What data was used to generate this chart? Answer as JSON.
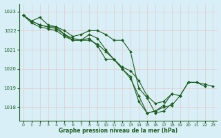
{
  "background_color": "#cce9d8",
  "plot_bg_color": "#d8eff8",
  "grid_color": "#b8d8c8",
  "line_color": "#1a5c1a",
  "marker_color": "#1a5c1a",
  "xlabel": "Graphe pression niveau de la mer (hPa)",
  "xlim": [
    -0.5,
    23.5
  ],
  "ylim": [
    1017.3,
    1023.4
  ],
  "yticks": [
    1018,
    1019,
    1020,
    1021,
    1022,
    1023
  ],
  "xticks": [
    0,
    1,
    2,
    3,
    4,
    5,
    6,
    7,
    8,
    9,
    10,
    11,
    12,
    13,
    14,
    15,
    16,
    17,
    18,
    19,
    20,
    21,
    22,
    23
  ],
  "series": [
    [
      1022.8,
      1022.5,
      1022.7,
      1022.3,
      1022.2,
      1022.0,
      1021.7,
      1021.8,
      1022.0,
      1022.0,
      1021.8,
      1021.5,
      1021.5,
      1020.9,
      1019.0,
      1018.5,
      1017.7,
      1017.8,
      1018.2,
      null,
      null,
      null,
      null,
      null
    ],
    [
      1022.8,
      1022.5,
      1022.3,
      1022.2,
      1022.1,
      1021.8,
      1021.5,
      1021.5,
      1021.6,
      1021.2,
      1020.5,
      1020.5,
      1020.0,
      1019.6,
      1018.3,
      1017.7,
      1017.8,
      1018.1,
      1018.7,
      1018.6,
      1019.3,
      1019.3,
      1019.2,
      1019.1
    ],
    [
      1022.8,
      1022.4,
      1022.2,
      1022.1,
      1022.0,
      1021.7,
      1021.5,
      1021.5,
      1021.5,
      1021.3,
      1020.9,
      1020.5,
      1020.0,
      1019.5,
      1018.6,
      1017.7,
      1017.8,
      1018.0,
      1018.1,
      1018.6,
      1019.3,
      1019.3,
      1019.1,
      null
    ],
    [
      1022.8,
      1022.5,
      1022.3,
      1022.2,
      1022.2,
      1021.8,
      1021.6,
      1021.5,
      1021.8,
      1021.6,
      1021.0,
      1020.5,
      1020.1,
      1019.9,
      1019.4,
      1018.6,
      1018.2,
      1018.3,
      1018.7,
      null,
      null,
      null,
      null,
      null
    ]
  ]
}
